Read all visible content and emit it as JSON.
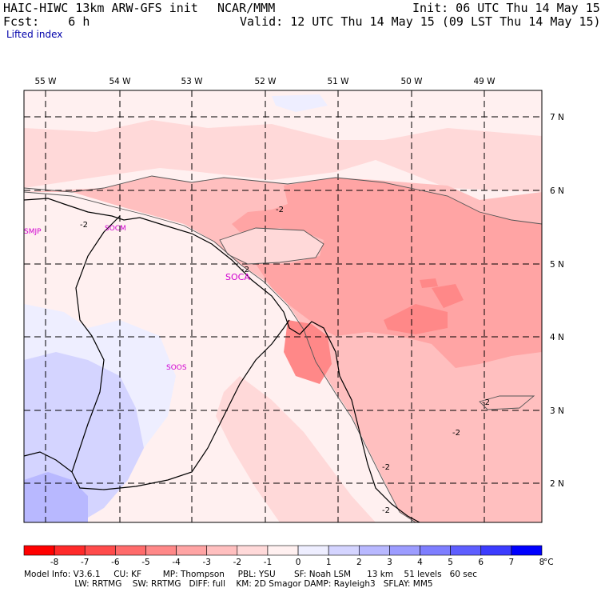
{
  "header": {
    "model_title": "HAIC-HIWC 13km ARW-GFS init",
    "agency": "NCAR/MMM",
    "init_time": "Init: 06 UTC Thu 14 May 15",
    "forecast": "Fcst:    6 h",
    "valid_time": "Valid: 12 UTC Thu 14 May 15 (09 LST Thu 14 May 15)",
    "field_name": "Lifted index"
  },
  "map": {
    "lon_labels": [
      "55 W",
      "54 W",
      "53 W",
      "52 W",
      "51 W",
      "50 W",
      "49 W"
    ],
    "lat_labels": [
      "7 N",
      "6 N",
      "5 N",
      "4 N",
      "3 N",
      "2 N"
    ],
    "station_labels": [
      "SMJP",
      "SOCM",
      "SOCA",
      "SOOS"
    ],
    "contour_labels": [
      "-2",
      "-2",
      "-2",
      "-2",
      "-2",
      "-2",
      "-2"
    ]
  },
  "colorbar": {
    "tick_labels": [
      "-8",
      "-7",
      "-6",
      "-5",
      "-4",
      "-3",
      "-2",
      "-1",
      "0",
      "1",
      "2",
      "3",
      "4",
      "5",
      "6",
      "7",
      "8"
    ],
    "unit": "°C",
    "colors": [
      "#ff0000",
      "#ff2a2a",
      "#ff4b4b",
      "#ff6b6b",
      "#ff8888",
      "#ffa4a4",
      "#ffbfbf",
      "#ffd9d9",
      "#fff0f0",
      "#eeeeff",
      "#d4d4ff",
      "#b8b8ff",
      "#9c9cff",
      "#7e7eff",
      "#5e5eff",
      "#3c3cff",
      "#0000ff"
    ]
  },
  "footer": {
    "line1": "Model Info: V3.6.1     CU: KF        MP: Thompson     PBL: YSU       SF: Noah LSM      13 km    51 levels   60 sec",
    "line2": "                   LW: RRTMG    SW: RRTMG   DIFF: full    KM: 2D Smagor DAMP: Rayleigh3   SFLAY: MM5"
  }
}
